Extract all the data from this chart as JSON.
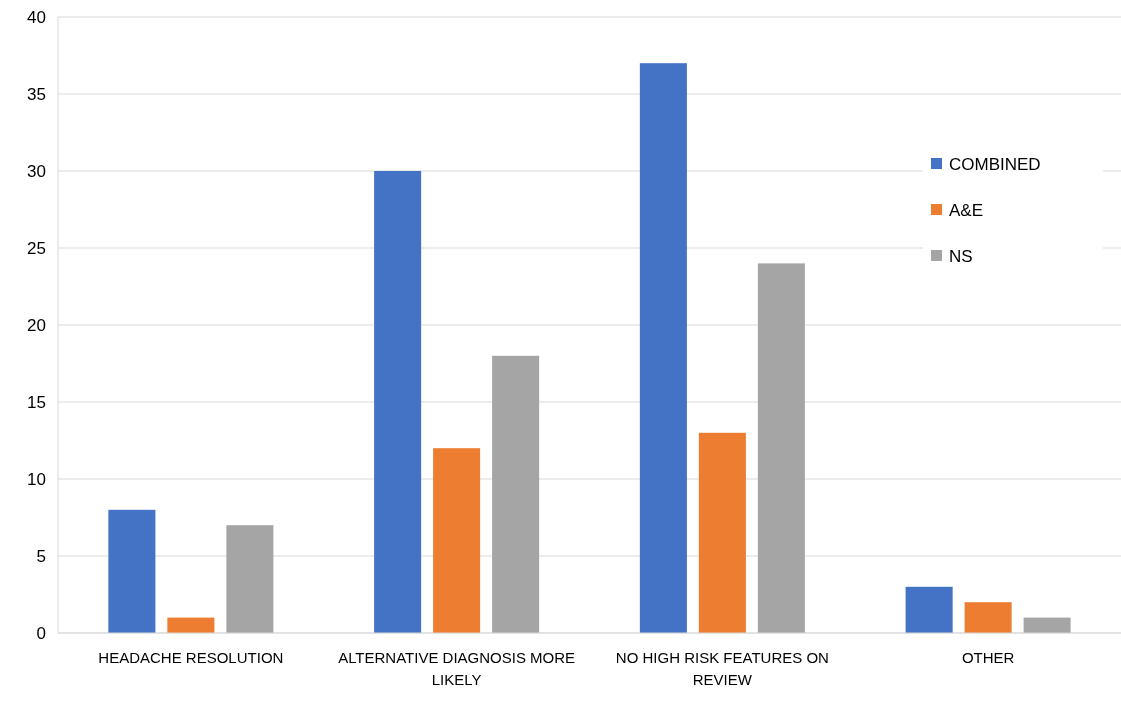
{
  "chart_data": {
    "type": "bar",
    "categories": [
      "HEADACHE RESOLUTION",
      "ALTERNATIVE DIAGNOSIS MORE LIKELY",
      "NO HIGH RISK FEATURES ON REVIEW",
      "OTHER"
    ],
    "series": [
      {
        "name": "COMBINED",
        "color": "#4472c4",
        "values": [
          8,
          30,
          37,
          3
        ]
      },
      {
        "name": "A&E",
        "color": "#ed7d31",
        "values": [
          1,
          12,
          13,
          2
        ]
      },
      {
        "name": "NS",
        "color": "#a5a5a5",
        "values": [
          7,
          18,
          24,
          1
        ]
      }
    ],
    "ylim": [
      0,
      40
    ],
    "yticks": [
      0,
      5,
      10,
      15,
      20,
      25,
      30,
      35,
      40
    ],
    "grid": "y",
    "legend": "right"
  }
}
